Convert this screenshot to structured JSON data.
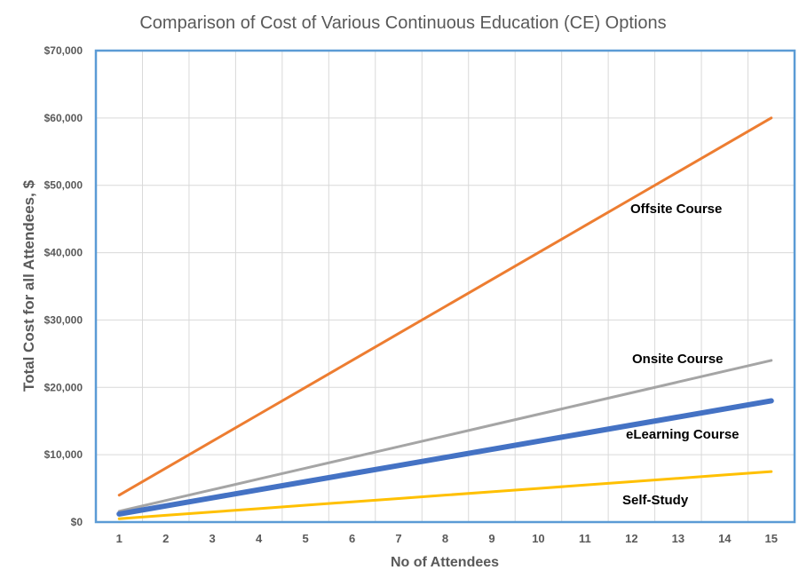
{
  "chart_data": {
    "type": "line",
    "title": "Comparison of Cost of Various Continuous Education (CE) Options",
    "xlabel": "No of Attendees",
    "ylabel": "Total Cost for all Attendees, $",
    "x": [
      1,
      2,
      3,
      4,
      5,
      6,
      7,
      8,
      9,
      10,
      11,
      12,
      13,
      14,
      15
    ],
    "xlim": [
      0.5,
      15.5
    ],
    "ylim": [
      0,
      70000
    ],
    "yticks": [
      0,
      10000,
      20000,
      30000,
      40000,
      50000,
      60000,
      70000
    ],
    "ytick_labels": [
      "$0",
      "$10,000",
      "$20,000",
      "$30,000",
      "$40,000",
      "$50,000",
      "$60,000",
      "$70,000"
    ],
    "grid": true,
    "legend": "none",
    "series": [
      {
        "name": "Offsite Course",
        "color": "#ED7D31",
        "emphasis": "normal",
        "values": [
          4000,
          8000,
          12000,
          16000,
          20000,
          24000,
          28000,
          32000,
          36000,
          40000,
          44000,
          48000,
          52000,
          56000,
          60000
        ]
      },
      {
        "name": "Onsite Course",
        "color": "#A5A5A5",
        "emphasis": "normal",
        "values": [
          1600,
          3200,
          4800,
          6400,
          8000,
          9600,
          11200,
          12800,
          14400,
          16000,
          17600,
          19200,
          20800,
          22400,
          24000
        ]
      },
      {
        "name": "eLearning Course",
        "color": "#4472C4",
        "emphasis": "thick",
        "values": [
          1200,
          2400,
          3600,
          4800,
          6000,
          7200,
          8400,
          9600,
          10800,
          12000,
          13200,
          14400,
          15600,
          16800,
          18000
        ]
      },
      {
        "name": "Self-Study",
        "color": "#FFC000",
        "emphasis": "normal",
        "values": [
          500,
          1000,
          1500,
          2000,
          2500,
          3000,
          3500,
          4000,
          4500,
          5000,
          5500,
          6000,
          6500,
          7000,
          7500
        ]
      }
    ],
    "colors": {
      "plot_border": "#5B9BD5",
      "grid": "#D9D9D9",
      "text": "#595959"
    }
  }
}
